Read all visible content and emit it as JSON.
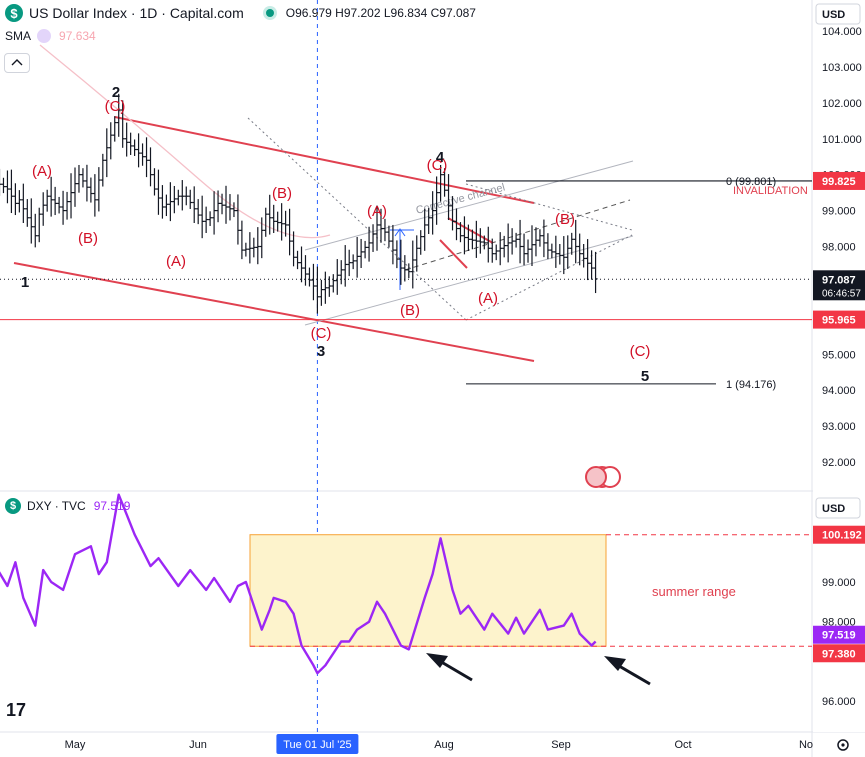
{
  "header": {
    "title": "US Dollar Index · 1D · Capital.com",
    "ohlc": {
      "o_label": "O",
      "o": "96.979",
      "h_label": "H",
      "h": "97.202",
      "l_label": "L",
      "l": "96.834",
      "c_label": "C",
      "c": "97.087"
    },
    "indicator": {
      "name": "SMA",
      "value": "97.634"
    }
  },
  "lower_header": {
    "symbol": "DXY",
    "source": "TVC",
    "value": "97.519"
  },
  "colors": {
    "bullet_red": "#e04150",
    "price_bar": "#131722",
    "dxy_line": "#9c27f5",
    "range_fill": "#fdf3cc",
    "range_border": "#f7a234",
    "label_box_red": "#f23645",
    "label_box_dark": "#131722",
    "scale_text": "#131722",
    "vline": "#2962ff",
    "wave_red": "#d10f26"
  },
  "chart_data": [
    {
      "type": "ohlc",
      "title": "US Dollar Index · 1D · Capital.com",
      "x_ticks": [
        "May",
        "Jun",
        "Jul",
        "Aug",
        "Sep",
        "Oct",
        "No"
      ],
      "crosshair_x_label": "Tue 01 Jul '25",
      "y_ticks": [
        "104.000",
        "103.000",
        "102.000",
        "101.000",
        "100.000",
        "99.000",
        "98.000",
        "97.000",
        "95.000",
        "94.000",
        "93.000",
        "92.000"
      ],
      "ylim": [
        91.5,
        104.5
      ],
      "series": [
        {
          "name": "US Dollar Index",
          "close_path": [
            {
              "date": "2025-04-11",
              "close": 99.8
            },
            {
              "date": "2025-04-14",
              "close": 99.6
            },
            {
              "date": "2025-04-16",
              "close": 99.2
            },
            {
              "date": "2025-04-17",
              "close": 99.3
            },
            {
              "date": "2025-04-21",
              "close": 98.3
            },
            {
              "date": "2025-04-22",
              "close": 98.9
            },
            {
              "date": "2025-04-24",
              "close": 99.4
            },
            {
              "date": "2025-04-28",
              "close": 99.0
            },
            {
              "date": "2025-04-30",
              "close": 99.5
            },
            {
              "date": "2025-05-02",
              "close": 100.0
            },
            {
              "date": "2025-05-06",
              "close": 99.3
            },
            {
              "date": "2025-05-08",
              "close": 100.4
            },
            {
              "date": "2025-05-12",
              "close": 101.8
            },
            {
              "date": "2025-05-13",
              "close": 101.0
            },
            {
              "date": "2025-05-15",
              "close": 100.8
            },
            {
              "date": "2025-05-19",
              "close": 100.4
            },
            {
              "date": "2025-05-21",
              "close": 99.6
            },
            {
              "date": "2025-05-23",
              "close": 99.1
            },
            {
              "date": "2025-05-27",
              "close": 99.4
            },
            {
              "date": "2025-05-29",
              "close": 99.4
            },
            {
              "date": "2025-06-02",
              "close": 98.7
            },
            {
              "date": "2025-06-04",
              "close": 98.8
            },
            {
              "date": "2025-06-06",
              "close": 99.2
            },
            {
              "date": "2025-06-10",
              "close": 99.0
            },
            {
              "date": "2025-06-12",
              "close": 97.9
            },
            {
              "date": "2025-06-16",
              "close": 98.0
            },
            {
              "date": "2025-06-18",
              "close": 98.9
            },
            {
              "date": "2025-06-20",
              "close": 98.7
            },
            {
              "date": "2025-06-23",
              "close": 98.6
            },
            {
              "date": "2025-06-25",
              "close": 97.7
            },
            {
              "date": "2025-06-27",
              "close": 97.4
            },
            {
              "date": "2025-06-30",
              "close": 96.9
            },
            {
              "date": "2025-07-01",
              "close": 96.6
            },
            {
              "date": "2025-07-02",
              "close": 96.8
            },
            {
              "date": "2025-07-04",
              "close": 96.9
            },
            {
              "date": "2025-07-08",
              "close": 97.5
            },
            {
              "date": "2025-07-10",
              "close": 97.6
            },
            {
              "date": "2025-07-14",
              "close": 98.1
            },
            {
              "date": "2025-07-16",
              "close": 98.6
            },
            {
              "date": "2025-07-18",
              "close": 98.4
            },
            {
              "date": "2025-07-22",
              "close": 97.4
            },
            {
              "date": "2025-07-24",
              "close": 97.3
            },
            {
              "date": "2025-07-28",
              "close": 98.6
            },
            {
              "date": "2025-07-30",
              "close": 99.0
            },
            {
              "date": "2025-08-01",
              "close": 100.0
            },
            {
              "date": "2025-08-04",
              "close": 98.7
            },
            {
              "date": "2025-08-06",
              "close": 98.3
            },
            {
              "date": "2025-08-08",
              "close": 98.2
            },
            {
              "date": "2025-08-12",
              "close": 98.1
            },
            {
              "date": "2025-08-14",
              "close": 97.8
            },
            {
              "date": "2025-08-18",
              "close": 98.1
            },
            {
              "date": "2025-08-20",
              "close": 98.2
            },
            {
              "date": "2025-08-22",
              "close": 97.8
            },
            {
              "date": "2025-08-26",
              "close": 98.3
            },
            {
              "date": "2025-08-28",
              "close": 97.9
            },
            {
              "date": "2025-09-01",
              "close": 97.7
            },
            {
              "date": "2025-09-03",
              "close": 98.2
            },
            {
              "date": "2025-09-05",
              "close": 97.8
            },
            {
              "date": "2025-09-08",
              "close": 97.4
            },
            {
              "date": "2025-09-09",
              "close": 97.1
            }
          ]
        }
      ],
      "price_labels": [
        {
          "value": "99.825",
          "text": "99.825",
          "label": "INVALIDATION",
          "style": "red"
        },
        {
          "value": "97.087",
          "text": "97.087",
          "time": "06:46:57",
          "style": "dark"
        },
        {
          "value": "95.965",
          "text": "95.965",
          "style": "red"
        }
      ],
      "fib_levels": [
        {
          "ratio": "0",
          "price": "(99.801)",
          "text": "0 (99.801)"
        },
        {
          "ratio": "1",
          "price": "(94.176)",
          "text": "1 (94.176)"
        }
      ],
      "wave_labels": {
        "black": [
          "1",
          "2",
          "3",
          "4",
          "5"
        ],
        "red": [
          "(A)",
          "(B)",
          "(A)",
          "(C)",
          "(B)",
          "(C)",
          "(A)",
          "(B)",
          "(C)",
          "(A)",
          "(B)",
          "(C)"
        ]
      },
      "annotations": [
        "Corrective channel",
        "INVALIDATION"
      ]
    },
    {
      "type": "line",
      "title": "DXY · TVC",
      "y_ticks": [
        "99.000",
        "98.000",
        "96.000"
      ],
      "ylim": [
        95.4,
        100.8
      ],
      "series": [
        {
          "name": "DXY",
          "values": [
            {
              "date": "2025-04-11",
              "close": 99.4
            },
            {
              "date": "2025-04-14",
              "close": 98.9
            },
            {
              "date": "2025-04-16",
              "close": 99.5
            },
            {
              "date": "2025-04-18",
              "close": 98.6
            },
            {
              "date": "2025-04-21",
              "close": 97.9
            },
            {
              "date": "2025-04-23",
              "close": 99.3
            },
            {
              "date": "2025-04-25",
              "close": 99.0
            },
            {
              "date": "2025-04-28",
              "close": 98.8
            },
            {
              "date": "2025-05-01",
              "close": 99.7
            },
            {
              "date": "2025-05-05",
              "close": 99.9
            },
            {
              "date": "2025-05-07",
              "close": 99.2
            },
            {
              "date": "2025-05-09",
              "close": 99.5
            },
            {
              "date": "2025-05-12",
              "close": 101.2
            },
            {
              "date": "2025-05-14",
              "close": 100.7
            },
            {
              "date": "2025-05-16",
              "close": 100.2
            },
            {
              "date": "2025-05-20",
              "close": 99.4
            },
            {
              "date": "2025-05-22",
              "close": 99.6
            },
            {
              "date": "2025-05-27",
              "close": 98.9
            },
            {
              "date": "2025-05-30",
              "close": 99.3
            },
            {
              "date": "2025-06-03",
              "close": 98.8
            },
            {
              "date": "2025-06-05",
              "close": 99.1
            },
            {
              "date": "2025-06-09",
              "close": 98.5
            },
            {
              "date": "2025-06-11",
              "close": 98.9
            },
            {
              "date": "2025-06-13",
              "close": 99.0
            },
            {
              "date": "2025-06-17",
              "close": 97.8
            },
            {
              "date": "2025-06-19",
              "close": 98.3
            },
            {
              "date": "2025-06-20",
              "close": 98.6
            },
            {
              "date": "2025-06-23",
              "close": 98.5
            },
            {
              "date": "2025-06-25",
              "close": 98.2
            },
            {
              "date": "2025-06-27",
              "close": 97.4
            },
            {
              "date": "2025-06-30",
              "close": 96.9
            },
            {
              "date": "2025-07-01",
              "close": 96.7
            },
            {
              "date": "2025-07-03",
              "close": 96.9
            },
            {
              "date": "2025-07-07",
              "close": 97.5
            },
            {
              "date": "2025-07-09",
              "close": 97.5
            },
            {
              "date": "2025-07-11",
              "close": 97.8
            },
            {
              "date": "2025-07-14",
              "close": 98.0
            },
            {
              "date": "2025-07-16",
              "close": 98.5
            },
            {
              "date": "2025-07-18",
              "close": 98.2
            },
            {
              "date": "2025-07-22",
              "close": 97.4
            },
            {
              "date": "2025-07-24",
              "close": 97.3
            },
            {
              "date": "2025-07-28",
              "close": 98.6
            },
            {
              "date": "2025-07-30",
              "close": 99.2
            },
            {
              "date": "2025-08-01",
              "close": 100.1
            },
            {
              "date": "2025-08-04",
              "close": 98.8
            },
            {
              "date": "2025-08-06",
              "close": 98.2
            },
            {
              "date": "2025-08-08",
              "close": 98.4
            },
            {
              "date": "2025-08-12",
              "close": 97.8
            },
            {
              "date": "2025-08-14",
              "close": 98.2
            },
            {
              "date": "2025-08-18",
              "close": 97.7
            },
            {
              "date": "2025-08-20",
              "close": 98.1
            },
            {
              "date": "2025-08-22",
              "close": 97.7
            },
            {
              "date": "2025-08-26",
              "close": 98.3
            },
            {
              "date": "2025-08-28",
              "close": 97.8
            },
            {
              "date": "2025-09-01",
              "close": 97.9
            },
            {
              "date": "2025-09-03",
              "close": 98.2
            },
            {
              "date": "2025-09-05",
              "close": 97.7
            },
            {
              "date": "2025-09-08",
              "close": 97.4
            },
            {
              "date": "2025-09-09",
              "close": 97.5
            }
          ]
        }
      ],
      "price_labels": [
        {
          "value": "100.192",
          "text": "100.192",
          "style": "red"
        },
        {
          "value": "97.519",
          "text": "97.519",
          "style": "purple"
        },
        {
          "value": "97.380",
          "text": "97.380",
          "style": "red"
        }
      ],
      "annotations": [
        "summer range"
      ]
    }
  ]
}
